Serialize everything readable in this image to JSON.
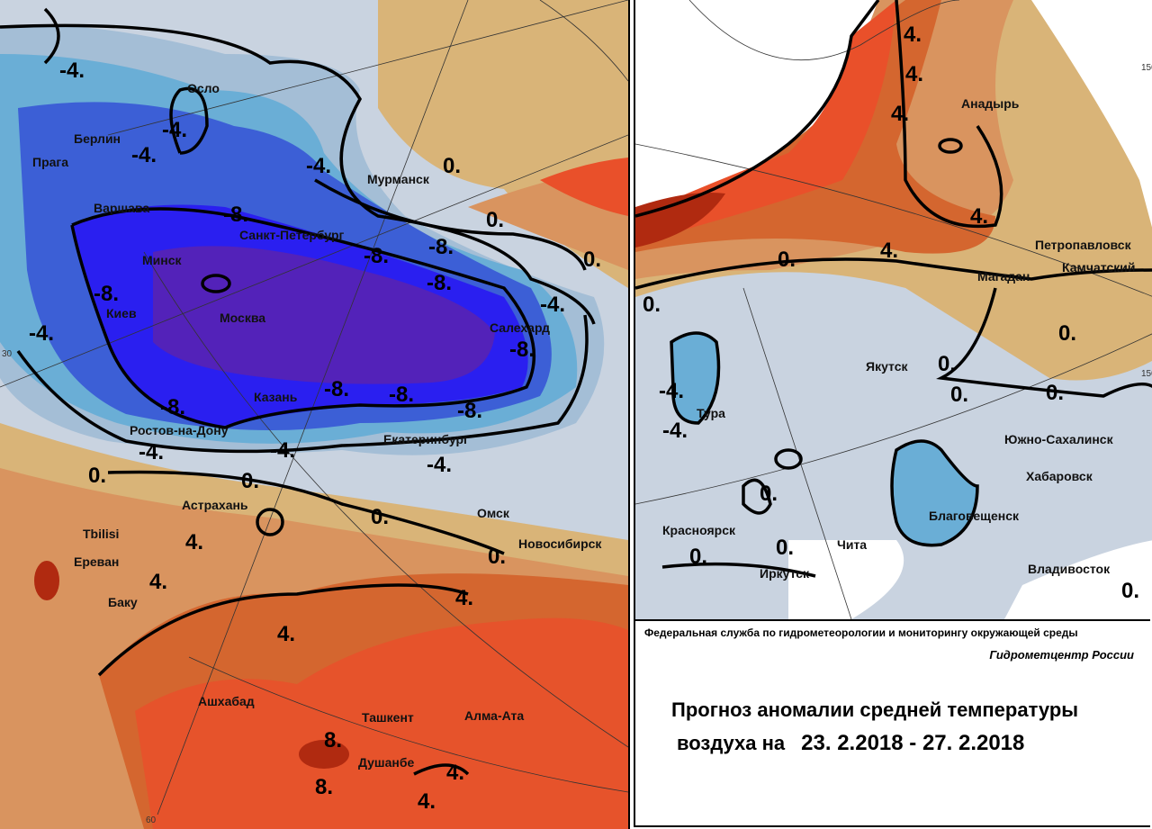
{
  "info": {
    "agency": "Федеральная служба по гидрометеорологии и мониторингу окружающей среды",
    "center": "Гидрометцентр России",
    "title_line1": "Прогноз аномалии средней температуры",
    "title_line2": "воздуха на",
    "date_range": "23. 2.2018 - 27. 2.2018"
  },
  "colors": {
    "anom_le_-12": "#5322b9",
    "anom_-10": "#2a1ff0",
    "anom_-8": "#3c5fd6",
    "anom_-6": "#4f8fd4",
    "anom_-4": "#6aaed6",
    "anom_-2": "#a4bed6",
    "anom_0": "#c9d3e0",
    "anom_2": "#d9b478",
    "anom_4": "#d9945f",
    "anom_6": "#d4662f",
    "anom_8": "#e9502a",
    "anom_10": "#b02a10"
  },
  "left_map": {
    "axis_labels": [
      "30",
      "60"
    ],
    "cities": [
      "Осло",
      "Берлин",
      "Прага",
      "Варшава",
      "Санкт-Петербург",
      "Минск",
      "Мурманск",
      "Киев",
      "Москва",
      "Салехард",
      "Казань",
      "Ростов-на-Дону",
      "Екатеринбург",
      "Астрахань",
      "Омск",
      "Tbilisi",
      "Новосибирск",
      "Ереван",
      "Баку",
      "Ашхабад",
      "Ташкент",
      "Алма-Ата",
      "Душанбе"
    ],
    "contour_labels": [
      "-4.",
      "-4.",
      "-4.",
      "-4.",
      "0.",
      "-8.",
      "-8.",
      "-8.",
      "-8.",
      "0.",
      "0.",
      "-8.",
      "-4.",
      "-4.",
      "-8.",
      "-8.",
      "-8.",
      "-8.",
      "-8.",
      "-4.",
      "-4.",
      "-4.",
      "0.",
      "0.",
      "0.",
      "0.",
      "4.",
      "4.",
      "4.",
      "4.",
      "8.",
      "8.",
      "4.",
      "4."
    ]
  },
  "right_map": {
    "axis_labels": [
      "150",
      "150"
    ],
    "cities": [
      "Анадырь",
      "Петропавловск",
      "Камчатский",
      "Магадан",
      "Якутск",
      "Тура",
      "Южно-Сахалинск",
      "Хабаровск",
      "Благовещенск",
      "Красноярск",
      "Чита",
      "Иркутск",
      "Владивосток"
    ],
    "contour_labels": [
      "4.",
      "4.",
      "4.",
      "4.",
      "4.",
      "0.",
      "0.",
      "0.",
      "0.",
      "0.",
      "0.",
      "0.",
      "-4.",
      "-4.",
      "0.",
      "0.",
      "0."
    ]
  }
}
